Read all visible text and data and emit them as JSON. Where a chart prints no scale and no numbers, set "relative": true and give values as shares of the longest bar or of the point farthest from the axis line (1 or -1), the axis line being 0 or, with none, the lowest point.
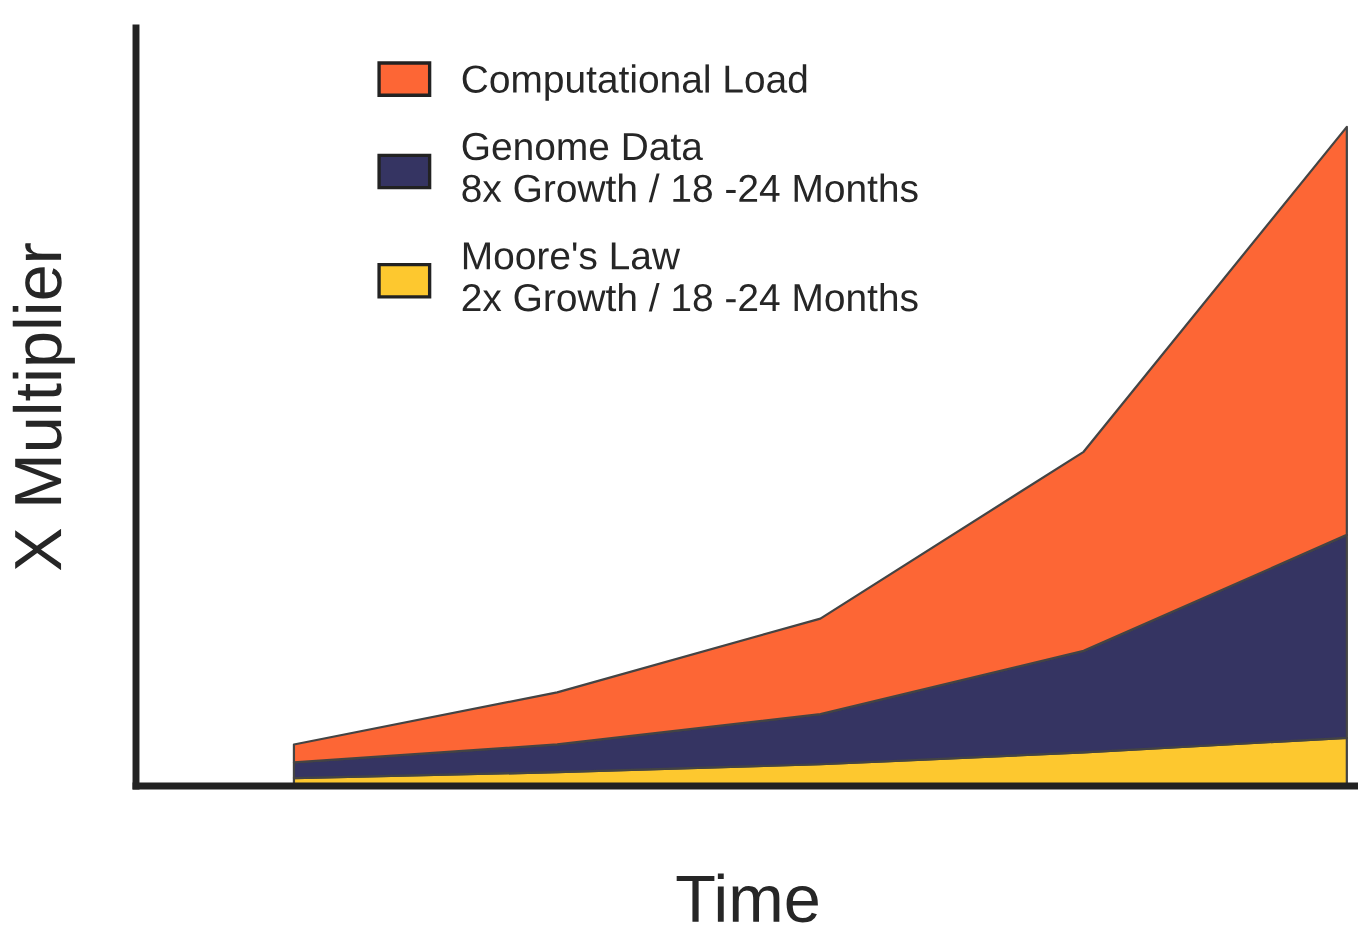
{
  "chart_data": {
    "type": "area",
    "stacked": true,
    "relative": true,
    "xlabel": "Time",
    "ylabel": "X Multiplier",
    "legend": "top",
    "grid": false,
    "categories": [
      null,
      null,
      null,
      null,
      null
    ],
    "series": [
      {
        "name": "Moore's Law\n2x Growth / 18 -24 Months",
        "color": "#fdc82f",
        "values": [
          0.012,
          0.021,
          0.033,
          0.051,
          0.073
        ]
      },
      {
        "name": "Genome Data\n8x Growth / 18 -24 Months",
        "color": "#353462",
        "values": [
          0.024,
          0.042,
          0.076,
          0.154,
          0.308
        ]
      },
      {
        "name": "Computational Load",
        "color": "#fd6635",
        "values": [
          0.027,
          0.079,
          0.145,
          0.302,
          0.619
        ]
      }
    ]
  }
}
